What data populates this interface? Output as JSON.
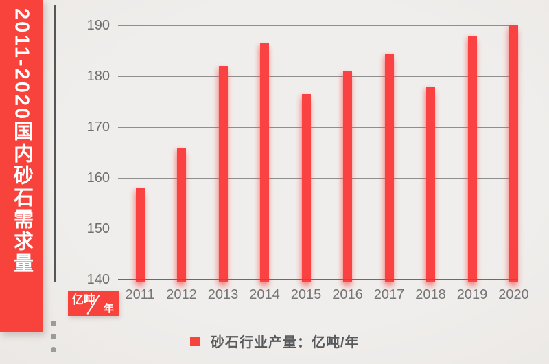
{
  "banner": {
    "title": "2011-2020国内砂石需求量",
    "color": "#f8423c"
  },
  "unit_badge": {
    "numerator": "亿吨",
    "denominator": "年"
  },
  "legend": {
    "label": "砂石行业产量：亿吨/年",
    "marker_color": "#f8423c"
  },
  "chart_data": {
    "type": "bar",
    "title": "2011-2020国内砂石需求量",
    "series_name": "砂石行业产量",
    "unit": "亿吨/年",
    "categories": [
      "2011",
      "2012",
      "2013",
      "2014",
      "2015",
      "2016",
      "2017",
      "2018",
      "2019",
      "2020"
    ],
    "values": [
      158,
      166,
      182,
      186.5,
      176.5,
      181,
      184.5,
      178,
      188,
      190
    ],
    "ylim": [
      140,
      190
    ],
    "yticks": [
      140,
      150,
      160,
      170,
      180,
      190
    ],
    "grid": true,
    "legend_position": "bottom",
    "bar_color": "#fb4243",
    "background_color": "#efedea"
  }
}
